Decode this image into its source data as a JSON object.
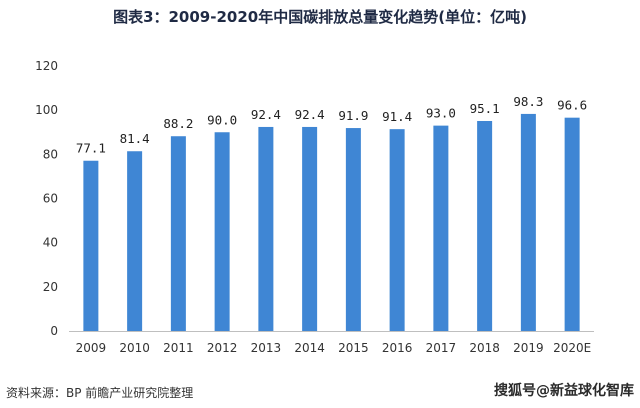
{
  "chart_data": {
    "type": "bar",
    "title": "图表3：2009-2020年中国碳排放总量变化趋势(单位：亿吨)",
    "categories": [
      "2009",
      "2010",
      "2011",
      "2012",
      "2013",
      "2014",
      "2015",
      "2016",
      "2017",
      "2018",
      "2019",
      "2020E"
    ],
    "values": [
      77.1,
      81.4,
      88.2,
      90.0,
      92.4,
      92.4,
      91.9,
      91.4,
      93.0,
      95.1,
      98.3,
      96.6
    ],
    "value_labels": [
      "77.1",
      "81.4",
      "88.2",
      "90.0",
      "92.4",
      "92.4",
      "91.9",
      "91.4",
      "93.0",
      "95.1",
      "98.3",
      "96.6"
    ],
    "y_ticks": [
      0,
      20,
      40,
      60,
      80,
      100,
      120
    ],
    "ylim": [
      0,
      120
    ],
    "grid": false,
    "bar_color": "#3f86d4",
    "xlabel": "",
    "ylabel": ""
  },
  "footer": {
    "source": "资料来源：BP 前瞻产业研究院整理",
    "watermark": "搜狐号@新益球化智库"
  }
}
